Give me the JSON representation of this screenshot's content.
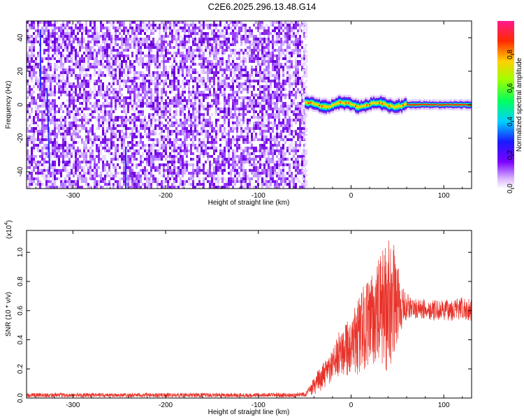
{
  "title": "C2E6.2025.296.13.48.G14",
  "chart_data": [
    {
      "type": "heatmap",
      "title": "C2E6.2025.296.13.48.G14",
      "xlabel": "Height of straight line (km)",
      "ylabel": "Frequency (Hz)",
      "xlim": [
        -350,
        130
      ],
      "ylim": [
        -50,
        50
      ],
      "xticks": [
        -300,
        -200,
        -100,
        0,
        100
      ],
      "xtick_labels": [
        "-300",
        "-200",
        "-100",
        "0",
        "100"
      ],
      "yticks": [
        -40,
        -20,
        0,
        20,
        40
      ],
      "ytick_labels": [
        "-40",
        "-20",
        "0",
        "20",
        "40"
      ],
      "noise_region_x": [
        -350,
        -50
      ],
      "signal_region_x": [
        -50,
        130
      ],
      "signal_center_freq": 0,
      "colorbar": {
        "label": "Normalized spectral amplitude",
        "range": [
          0,
          1
        ],
        "ticks": [
          0.0,
          0.2,
          0.4,
          0.6,
          0.8
        ],
        "tick_labels": [
          "0.0",
          "0.2",
          "0.4",
          "0.6",
          "0.8"
        ]
      },
      "grid": false
    },
    {
      "type": "line",
      "xlabel": "Height of straight line (km)",
      "ylabel": "SNR (10 * v/v)",
      "scale_label": "(x10",
      "scale_exponent": "4",
      "scale_close": ")",
      "xlim": [
        -350,
        130
      ],
      "ylim": [
        0,
        1.15
      ],
      "xticks": [
        -300,
        -200,
        -100,
        0,
        100
      ],
      "xtick_labels": [
        "-300",
        "-200",
        "-100",
        "0",
        "100"
      ],
      "yticks": [
        0.0,
        0.2,
        0.4,
        0.6,
        0.8,
        1.0
      ],
      "ytick_labels": [
        "0.0",
        "0.2",
        "0.4",
        "0.6",
        "0.8",
        "1.0"
      ],
      "color": "#e8332a",
      "series": [
        {
          "name": "SNR",
          "x": [
            -350,
            -300,
            -250,
            -200,
            -150,
            -100,
            -60,
            -48,
            -40,
            -35,
            -30,
            -25,
            -20,
            -15,
            -10,
            -5,
            0,
            5,
            10,
            15,
            20,
            25,
            30,
            35,
            40,
            45,
            50,
            55,
            60,
            65,
            70,
            80,
            90,
            100,
            110,
            120,
            130
          ],
          "y": [
            0.02,
            0.02,
            0.02,
            0.02,
            0.02,
            0.02,
            0.02,
            0.03,
            0.08,
            0.12,
            0.15,
            0.18,
            0.22,
            0.28,
            0.33,
            0.38,
            0.3,
            0.4,
            0.45,
            0.5,
            0.52,
            0.55,
            0.58,
            0.62,
            0.65,
            0.68,
            0.66,
            0.62,
            0.63,
            0.62,
            0.61,
            0.61,
            0.6,
            0.6,
            0.61,
            0.61,
            0.61
          ],
          "amplitude": [
            0.015,
            0.015,
            0.015,
            0.015,
            0.015,
            0.015,
            0.015,
            0.02,
            0.06,
            0.08,
            0.09,
            0.1,
            0.11,
            0.14,
            0.18,
            0.22,
            0.2,
            0.26,
            0.28,
            0.3,
            0.3,
            0.32,
            0.38,
            0.42,
            0.48,
            0.4,
            0.3,
            0.14,
            0.1,
            0.08,
            0.07,
            0.07,
            0.07,
            0.07,
            0.08,
            0.08,
            0.08
          ]
        }
      ],
      "grid": false
    }
  ]
}
